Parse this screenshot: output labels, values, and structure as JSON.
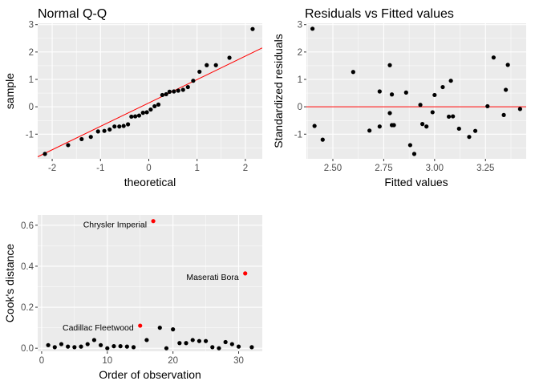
{
  "chart_data": [
    {
      "id": "qq",
      "type": "scatter",
      "title": "Normal Q-Q",
      "xlabel": "theoretical",
      "ylabel": "sample",
      "xlim": [
        -2.3,
        2.35
      ],
      "ylim": [
        -1.9,
        3.05
      ],
      "xticks": [
        -2,
        -1,
        0,
        1,
        2
      ],
      "yticks": [
        -1,
        0,
        1,
        2,
        3
      ],
      "grid": true,
      "points": {
        "x": [
          -2.15,
          -1.67,
          -1.39,
          -1.2,
          -1.05,
          -0.92,
          -0.81,
          -0.71,
          -0.61,
          -0.52,
          -0.43,
          -0.36,
          -0.28,
          -0.2,
          -0.12,
          -0.04,
          0.04,
          0.12,
          0.2,
          0.28,
          0.36,
          0.43,
          0.52,
          0.61,
          0.71,
          0.81,
          0.92,
          1.05,
          1.2,
          1.39,
          1.67,
          2.15
        ],
        "y": [
          -1.72,
          -1.4,
          -1.18,
          -1.1,
          -0.9,
          -0.88,
          -0.83,
          -0.72,
          -0.72,
          -0.7,
          -0.64,
          -0.36,
          -0.35,
          -0.32,
          -0.22,
          -0.2,
          -0.1,
          0.02,
          0.08,
          0.43,
          0.46,
          0.55,
          0.56,
          0.59,
          0.62,
          0.72,
          0.95,
          1.28,
          1.52,
          1.52,
          1.79,
          2.84
        ]
      },
      "reference_line": {
        "slope": 0.855,
        "intercept": 0.14,
        "color": "#ff0000"
      }
    },
    {
      "id": "resid",
      "type": "scatter",
      "title": "Residuals vs Fitted values",
      "xlabel": "Fitted values",
      "ylabel": "Standardized residuals",
      "xlim": [
        2.37,
        3.45
      ],
      "ylim": [
        -1.9,
        3.05
      ],
      "xticks": [
        2.5,
        2.75,
        3.0,
        3.25
      ],
      "xticklabels": [
        "2.50",
        "2.75",
        "3.00",
        "3.25"
      ],
      "yticks": [
        -1,
        0,
        1,
        2,
        3
      ],
      "grid": true,
      "points": {
        "x": [
          2.4,
          2.41,
          2.45,
          2.6,
          2.68,
          2.73,
          2.73,
          2.78,
          2.78,
          2.79,
          2.79,
          2.8,
          2.86,
          2.88,
          2.9,
          2.93,
          2.94,
          2.96,
          2.99,
          3.0,
          3.04,
          3.07,
          3.08,
          3.09,
          3.12,
          3.17,
          3.2,
          3.26,
          3.29,
          3.34,
          3.35,
          3.36,
          3.42
        ],
        "y": [
          2.85,
          -0.7,
          -1.2,
          1.27,
          -0.87,
          -0.72,
          0.56,
          1.52,
          -0.23,
          0.45,
          -0.67,
          -0.67,
          0.52,
          -1.4,
          -1.72,
          0.07,
          -0.63,
          -0.72,
          -0.2,
          0.43,
          0.72,
          -0.36,
          0.95,
          -0.35,
          -0.8,
          -1.1,
          -0.88,
          0.02,
          1.8,
          -0.3,
          0.62,
          1.53,
          -0.08
        ]
      },
      "reference_line": {
        "y": 0,
        "color": "#ff0000"
      }
    },
    {
      "id": "cooks",
      "type": "scatter",
      "xlabel": "Order of observation",
      "ylabel": "Cook's distance",
      "xlim": [
        -0.6,
        33.6
      ],
      "ylim": [
        -0.015,
        0.65
      ],
      "xticks": [
        0,
        10,
        20,
        30
      ],
      "yticks": [
        0.0,
        0.2,
        0.4,
        0.6
      ],
      "yticklabels": [
        "0.0",
        "0.2",
        "0.4",
        "0.6"
      ],
      "grid": true,
      "points": {
        "x": [
          1,
          2,
          3,
          4,
          5,
          6,
          7,
          8,
          9,
          10,
          11,
          12,
          13,
          14,
          15,
          16,
          17,
          18,
          19,
          20,
          21,
          22,
          23,
          24,
          25,
          26,
          27,
          28,
          29,
          30,
          31,
          32
        ],
        "y": [
          0.015,
          0.005,
          0.02,
          0.008,
          0.005,
          0.008,
          0.02,
          0.04,
          0.015,
          0.0,
          0.01,
          0.01,
          0.008,
          0.005,
          0.11,
          0.04,
          0.62,
          0.1,
          0.0,
          0.092,
          0.025,
          0.025,
          0.04,
          0.035,
          0.035,
          0.005,
          0.0,
          0.03,
          0.02,
          0.008,
          0.365,
          0.005
        ]
      },
      "highlight_color": "#ff0000",
      "highlighted": [
        15,
        17,
        31
      ],
      "annotations": [
        {
          "text": "Chrysler Imperial",
          "x": 17,
          "y": 0.62,
          "anchor": "end",
          "dx": -8,
          "dy": 8
        },
        {
          "text": "Maserati Bora",
          "x": 31,
          "y": 0.365,
          "anchor": "end",
          "dx": -8,
          "dy": 8
        },
        {
          "text": "Cadillac Fleetwood",
          "x": 15,
          "y": 0.11,
          "anchor": "end",
          "dx": -8,
          "dy": 6
        }
      ]
    }
  ]
}
